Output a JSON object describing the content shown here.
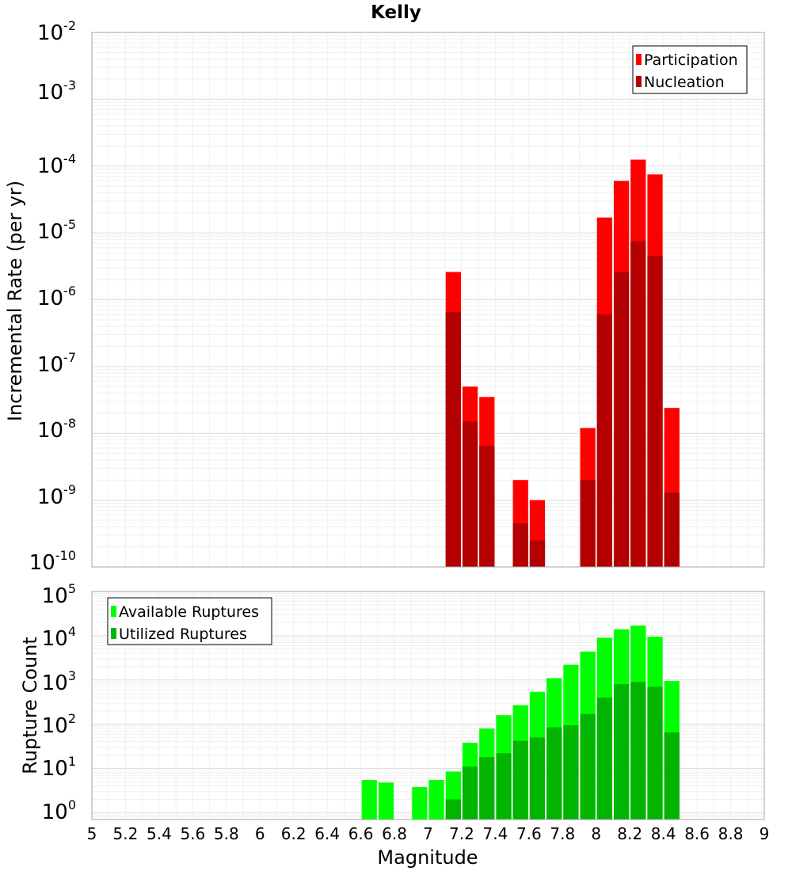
{
  "chart_data": [
    {
      "type": "bar",
      "title": "Kelly",
      "ylabel": "Incremental Rate (per yr)",
      "yscale": "log",
      "ylim": [
        1e-10,
        0.01
      ],
      "xlim": [
        5,
        9
      ],
      "bin_width": 0.1,
      "grid": true,
      "legend_position": "top-right",
      "overlay": true,
      "series": [
        {
          "name": "Participation",
          "color": "#ff0000",
          "x": [
            7.15,
            7.25,
            7.35,
            7.55,
            7.65,
            7.95,
            8.05,
            8.15,
            8.25,
            8.35,
            8.45
          ],
          "values": [
            2.6e-06,
            5e-08,
            3.5e-08,
            2e-09,
            1e-09,
            1.2e-08,
            1.7e-05,
            6e-05,
            0.000125,
            7.5e-05,
            2.4e-08
          ]
        },
        {
          "name": "Nucleation",
          "color": "#b40000",
          "x": [
            7.15,
            7.25,
            7.35,
            7.55,
            7.65,
            7.95,
            8.05,
            8.15,
            8.25,
            8.35,
            8.45
          ],
          "values": [
            6.5e-07,
            1.5e-08,
            6.5e-09,
            4.5e-10,
            2.5e-10,
            2e-09,
            6e-07,
            2.6e-06,
            7.5e-06,
            4.5e-06,
            1.3e-09
          ]
        }
      ]
    },
    {
      "type": "bar",
      "xlabel": "Magnitude",
      "ylabel": "Rupture Count",
      "yscale": "log",
      "ylim": [
        0.7,
        100000.0
      ],
      "xlim": [
        5,
        9
      ],
      "bin_width": 0.1,
      "grid": true,
      "legend_position": "top-left",
      "overlay": true,
      "series": [
        {
          "name": "Available Ruptures",
          "color": "#00ff00",
          "x": [
            6.65,
            6.75,
            6.95,
            7.05,
            7.15,
            7.25,
            7.35,
            7.45,
            7.55,
            7.65,
            7.75,
            7.85,
            7.95,
            8.05,
            8.15,
            8.25,
            8.35,
            8.45
          ],
          "values": [
            5.5,
            4.8,
            3.8,
            5.5,
            8.5,
            38,
            80,
            160,
            270,
            540,
            1100,
            2200,
            4400,
            9000,
            14000,
            17000,
            9500,
            950
          ]
        },
        {
          "name": "Utilized Ruptures",
          "color": "#00b400",
          "x": [
            7.15,
            7.25,
            7.35,
            7.45,
            7.55,
            7.65,
            7.75,
            7.85,
            7.95,
            8.05,
            8.15,
            8.25,
            8.35,
            8.45
          ],
          "values": [
            2,
            11,
            18,
            22,
            42,
            50,
            85,
            95,
            170,
            400,
            800,
            900,
            700,
            65
          ]
        }
      ]
    }
  ],
  "x_ticks": [
    "5",
    "5.2",
    "5.4",
    "5.6",
    "5.8",
    "6",
    "6.2",
    "6.4",
    "6.6",
    "6.8",
    "7",
    "7.2",
    "7.4",
    "7.6",
    "7.8",
    "8",
    "8.2",
    "8.4",
    "8.6",
    "8.8",
    "9"
  ],
  "top_y_ticks": [
    {
      "base": "10",
      "exp": "-2"
    },
    {
      "base": "10",
      "exp": "-3"
    },
    {
      "base": "10",
      "exp": "-4"
    },
    {
      "base": "10",
      "exp": "-5"
    },
    {
      "base": "10",
      "exp": "-6"
    },
    {
      "base": "10",
      "exp": "-7"
    },
    {
      "base": "10",
      "exp": "-8"
    },
    {
      "base": "10",
      "exp": "-9"
    },
    {
      "base": "10",
      "exp": "-10"
    }
  ],
  "bottom_y_ticks": [
    {
      "base": "10",
      "exp": "5"
    },
    {
      "base": "10",
      "exp": "4"
    },
    {
      "base": "10",
      "exp": "3"
    },
    {
      "base": "10",
      "exp": "2"
    },
    {
      "base": "10",
      "exp": "1"
    },
    {
      "base": "10",
      "exp": "0"
    }
  ]
}
